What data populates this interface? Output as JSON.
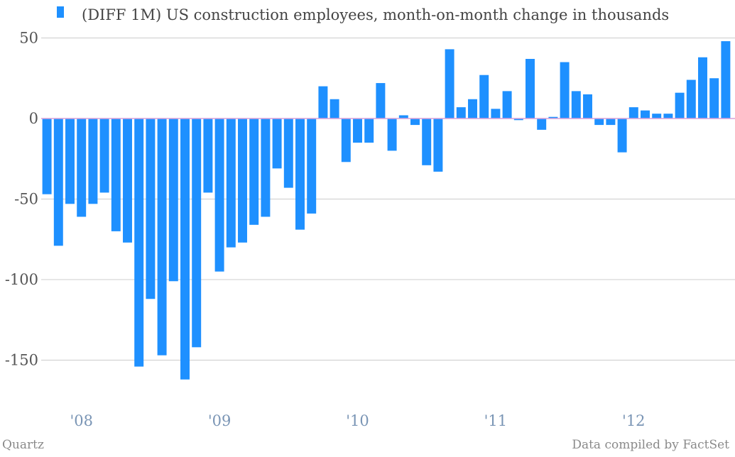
{
  "chart_data": {
    "type": "bar",
    "legend": "(DIFF 1M)  US construction employees, month-on-month change in thousands",
    "series": [
      {
        "name": "(DIFF 1M)  US construction employees, month-on-month change in thousands",
        "color": "#1e90ff",
        "values": [
          -47,
          -79,
          -53,
          -61,
          -53,
          -46,
          -70,
          -77,
          -154,
          -112,
          -147,
          -101,
          -162,
          -142,
          -46,
          -95,
          -80,
          -77,
          -66,
          -61,
          -31,
          -43,
          -69,
          -59,
          20,
          12,
          -27,
          -15,
          -15,
          22,
          -20,
          2,
          -4,
          -29,
          -33,
          43,
          7,
          12,
          27,
          6,
          17,
          -1,
          37,
          -7,
          1,
          35,
          17,
          15,
          -4,
          -4,
          -21,
          7,
          5,
          3,
          3,
          16,
          24,
          38,
          25,
          48
        ]
      }
    ],
    "x_tick_labels": [
      "'08",
      "'09",
      "'10",
      "'11",
      "'12"
    ],
    "x_tick_index": [
      3,
      15,
      27,
      39,
      51
    ],
    "y_ticks": [
      50,
      0,
      -50,
      -100,
      -150
    ],
    "ylim": [
      -175,
      55
    ],
    "grid": true,
    "zero_line_color": "#d9a0d9",
    "gridline_color": "#cccccc",
    "legend_position": "top"
  },
  "footer": {
    "source_left": "Quartz",
    "source_right": "Data compiled by FactSet"
  }
}
